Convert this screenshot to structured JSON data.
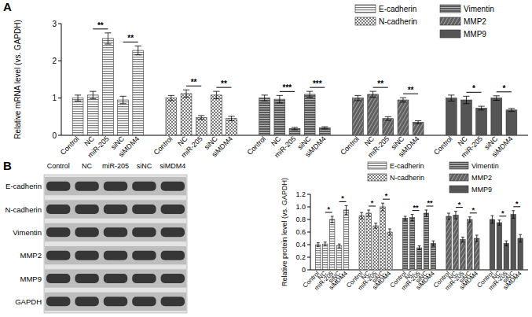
{
  "chart_data": [
    {
      "type": "bar",
      "panel_label": "A",
      "y_label": "Relative mRNA level (vs. GAPDH)",
      "categories": [
        "Control",
        "NC",
        "miR-205",
        "siNC",
        "siMDM4"
      ],
      "ylim": [
        0,
        3
      ],
      "yticks": [
        0,
        1,
        2,
        3
      ],
      "grid": false,
      "legend": "top-right",
      "series": [
        {
          "name": "E-cadherin",
          "color": "#7a7a7a",
          "values": [
            1.0,
            1.08,
            2.6,
            0.95,
            2.28
          ],
          "errors": [
            0.08,
            0.1,
            0.15,
            0.1,
            0.12
          ],
          "significance": [
            null,
            null,
            "**",
            null,
            "**"
          ]
        },
        {
          "name": "N-cadherin",
          "color": "#7a7a7a",
          "values": [
            1.0,
            1.12,
            0.48,
            1.08,
            0.45
          ],
          "errors": [
            0.07,
            0.1,
            0.05,
            0.1,
            0.06
          ],
          "significance": [
            null,
            null,
            "**",
            null,
            "**"
          ]
        },
        {
          "name": "Vimentin",
          "color": "#5a5a5a",
          "values": [
            1.0,
            0.97,
            0.18,
            1.1,
            0.2
          ],
          "errors": [
            0.08,
            0.1,
            0.03,
            0.08,
            0.03
          ],
          "significance": [
            null,
            null,
            "***",
            null,
            "***"
          ]
        },
        {
          "name": "MMP2",
          "color": "#606060",
          "values": [
            1.0,
            1.1,
            0.45,
            0.95,
            0.35
          ],
          "errors": [
            0.07,
            0.08,
            0.05,
            0.06,
            0.04
          ],
          "significance": [
            null,
            null,
            "**",
            null,
            "**"
          ]
        },
        {
          "name": "MMP9",
          "color": "#555555",
          "values": [
            1.0,
            0.95,
            0.73,
            1.0,
            0.68
          ],
          "errors": [
            0.08,
            0.1,
            0.05,
            0.06,
            0.04
          ],
          "significance": [
            null,
            null,
            "*",
            null,
            "*"
          ]
        }
      ]
    },
    {
      "type": "bar",
      "panel_label": "B",
      "y_label": "Relative protein level (vs. GAPDH)",
      "categories": [
        "Control",
        "NC",
        "miR-205",
        "siNC",
        "siMDM4"
      ],
      "ylim": [
        0,
        1.2
      ],
      "yticks": [
        0,
        0.2,
        0.4,
        0.6,
        0.8,
        {
          "value": 1,
          "label": "1.0"
        },
        1.2
      ],
      "grid": false,
      "legend": "top-right",
      "series": [
        {
          "name": "E-cadherin",
          "color": "#7a7a7a",
          "values": [
            0.4,
            0.41,
            0.8,
            0.38,
            0.95
          ],
          "errors": [
            0.03,
            0.03,
            0.05,
            0.03,
            0.07
          ],
          "significance": [
            null,
            null,
            "*",
            null,
            "*"
          ]
        },
        {
          "name": "N-cadherin",
          "color": "#7a7a7a",
          "values": [
            0.86,
            0.9,
            0.7,
            1.0,
            0.6
          ],
          "errors": [
            0.05,
            0.05,
            0.04,
            0.06,
            0.05
          ],
          "significance": [
            null,
            null,
            "*",
            null,
            "*"
          ]
        },
        {
          "name": "Vimentin",
          "color": "#5a5a5a",
          "values": [
            0.82,
            0.83,
            0.35,
            0.9,
            0.42
          ],
          "errors": [
            0.03,
            0.05,
            0.03,
            0.05,
            0.04
          ],
          "significance": [
            null,
            null,
            "**",
            null,
            "**"
          ]
        },
        {
          "name": "MMP2",
          "color": "#606060",
          "values": [
            0.85,
            0.87,
            0.48,
            0.8,
            0.5
          ],
          "errors": [
            0.05,
            0.06,
            0.04,
            0.04,
            0.05
          ],
          "significance": [
            null,
            null,
            "*",
            null,
            "*"
          ]
        },
        {
          "name": "MMP9",
          "color": "#555555",
          "values": [
            0.8,
            0.75,
            0.42,
            0.88,
            0.5
          ],
          "errors": [
            0.06,
            0.04,
            0.04,
            0.06,
            0.06
          ],
          "significance": [
            null,
            null,
            "*",
            null,
            "*"
          ]
        }
      ]
    }
  ],
  "blot": {
    "lanes": [
      "Control",
      "NC",
      "miR-205",
      "siNC",
      "siMDM4"
    ],
    "proteins": [
      "E-cadherin",
      "N-cadherin",
      "Vimentin",
      "MMP2",
      "MMP9",
      "GAPDH"
    ]
  }
}
